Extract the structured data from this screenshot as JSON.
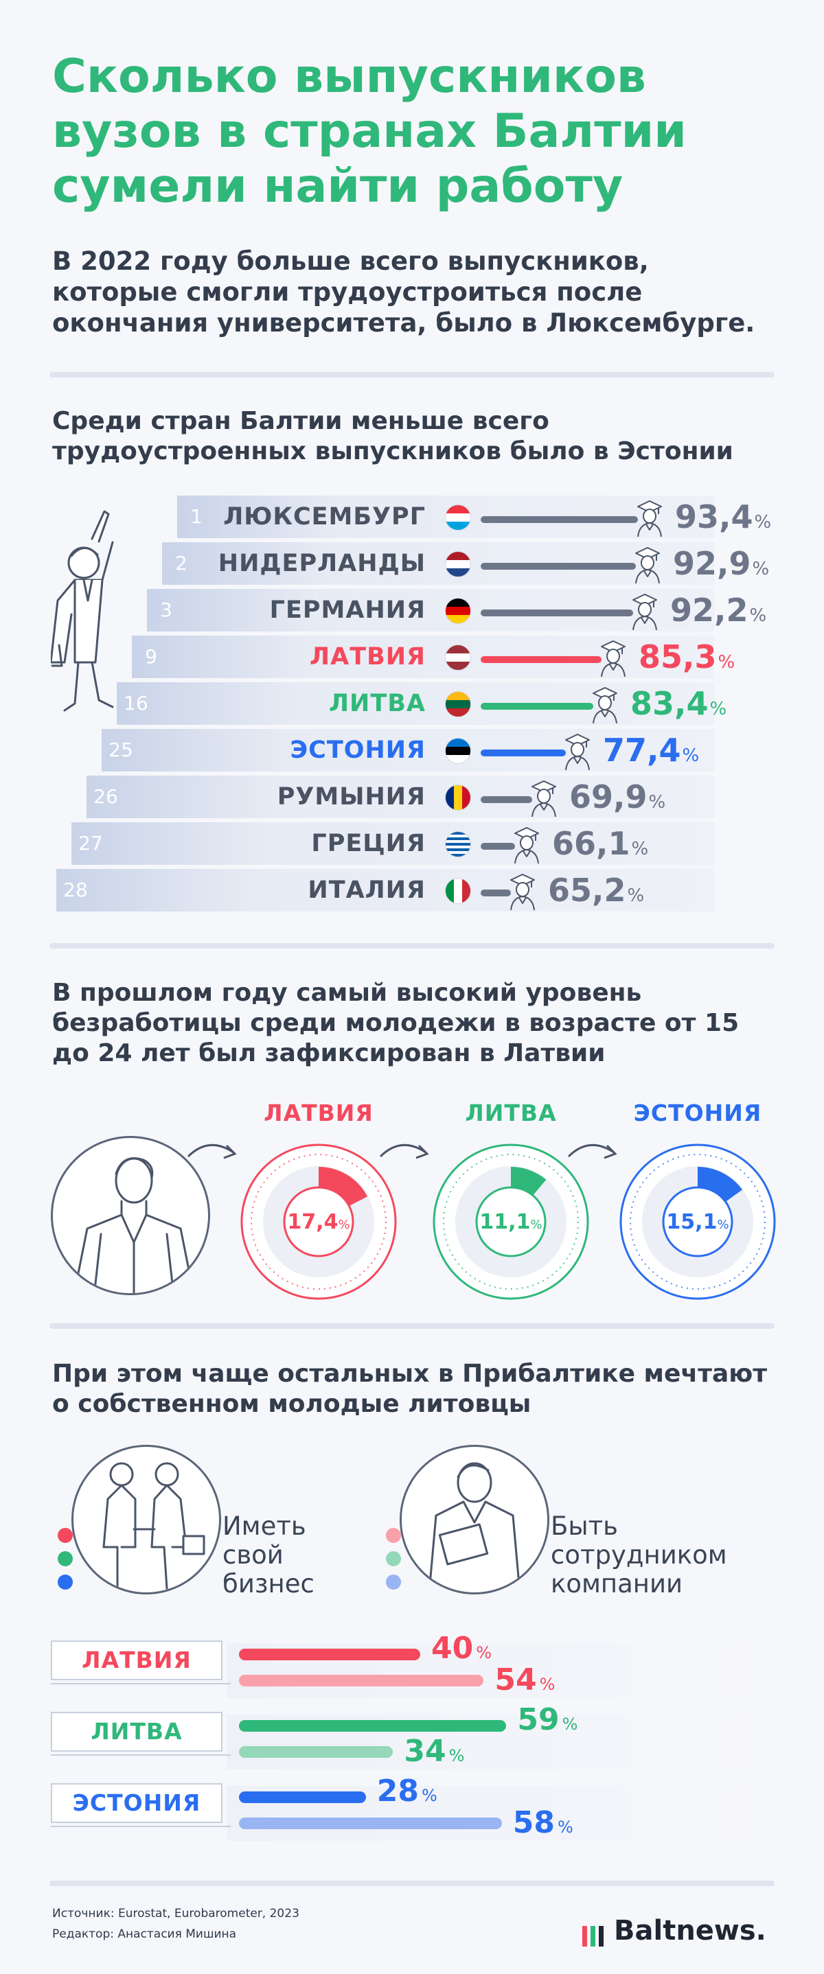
{
  "title": "Сколько выпускников вузов в странах Балтии сумели найти работу",
  "intro": "В 2022 году больше всего выпускников, которые смогли трудоустроиться после окончания университета, было в Люксембурге.",
  "section1_heading": "Среди стран Балтии меньше всего трудоустроенных выпускников было в Эстонии",
  "section2_heading": "В прошлом году самый высокий уровень безработицы среди молодежи в возрасте от 15 до 24 лет был зафиксирован в Латвии",
  "section3_heading": "При этом чаще остальных в Прибалтике мечтают о собственном молодые литовцы",
  "percent_sign": "%",
  "colors": {
    "latvia": "#f4495d",
    "lithuania": "#2fb87a",
    "estonia": "#2a6ef0",
    "other": "#6d7689",
    "title": "#2fb87a"
  },
  "chart_data": [
    {
      "type": "bar",
      "categories": [
        "ЛЮКСЕМБУРГ",
        "НИДЕРЛАНДЫ",
        "ГЕРМАНИЯ",
        "ЛАТВИЯ",
        "ЛИТВА",
        "ЭСТОНИЯ",
        "РУМЫНИЯ",
        "ГРЕЦИЯ",
        "ИТАЛИЯ"
      ],
      "ranks": [
        "1",
        "2",
        "3",
        "9",
        "16",
        "25",
        "26",
        "27",
        "28"
      ],
      "values": [
        93.4,
        92.9,
        92.2,
        85.3,
        83.4,
        77.4,
        69.9,
        66.1,
        65.2
      ],
      "value_labels": [
        "93,4",
        "92,9",
        "92,2",
        "85,3",
        "83,4",
        "77,4",
        "69,9",
        "66,1",
        "65,2"
      ],
      "highlight": [
        "other",
        "other",
        "other",
        "latvia",
        "lithuania",
        "estonia",
        "other",
        "other",
        "other"
      ],
      "flags": [
        "luxembourg",
        "netherlands",
        "germany",
        "latvia",
        "lithuania",
        "estonia",
        "romania",
        "greece",
        "italy"
      ]
    },
    {
      "type": "pie",
      "categories": [
        "ЛАТВИЯ",
        "ЛИТВА",
        "ЭСТОНИЯ"
      ],
      "values": [
        17.4,
        11.1,
        15.1
      ],
      "value_labels": [
        "17,4",
        "11,1",
        "15,1"
      ],
      "colors": [
        "#f4495d",
        "#2fb87a",
        "#2a6ef0"
      ]
    },
    {
      "type": "bar",
      "categories": [
        "ЛАТВИЯ",
        "ЛИТВА",
        "ЭСТОНИЯ"
      ],
      "series": [
        {
          "name": "Иметь свой бизнес",
          "values": [
            40,
            59,
            28
          ]
        },
        {
          "name": "Быть сотрудником компании",
          "values": [
            54,
            34,
            58
          ]
        }
      ],
      "colors_series1": [
        "#f4495d",
        "#2fb87a",
        "#2a6ef0"
      ],
      "colors_series2": [
        "#f9a1aa",
        "#94d7b9",
        "#98b4f3"
      ]
    }
  ],
  "legend": {
    "business": [
      "Иметь",
      "свой",
      "бизнес"
    ],
    "employee": [
      "Быть",
      "сотрудником",
      "компании"
    ]
  },
  "footer": {
    "source": "Источник: Eurostat, Eurobarometer, 2023",
    "editor": "Редактор: Анастасия Мишина"
  },
  "logo": "Baltnews."
}
